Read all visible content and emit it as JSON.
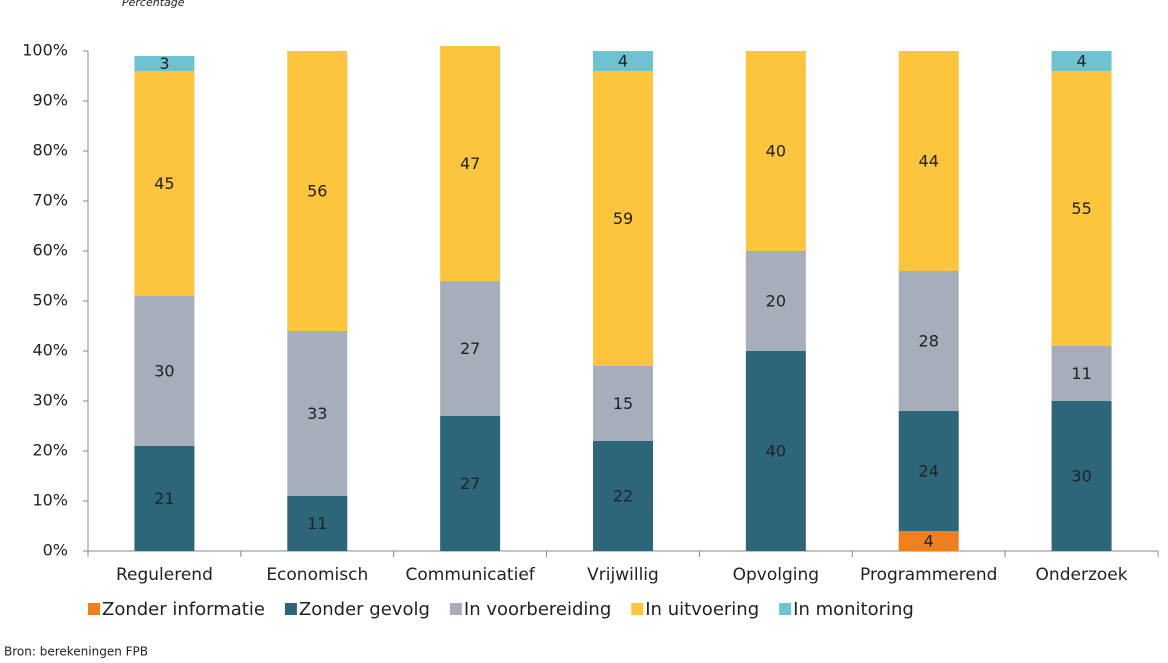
{
  "chart_data": {
    "type": "stacked-bar",
    "subtitle": "Percentage",
    "source": "Bron: berekeningen FPB",
    "categories": [
      "Regulerend",
      "Economisch",
      "Communicatief",
      "Vrijwillig",
      "Opvolging",
      "Programmerend",
      "Onderzoek"
    ],
    "series": [
      {
        "name": "Zonder informatie",
        "color": "#f0801e",
        "values": [
          null,
          null,
          null,
          null,
          null,
          4,
          null
        ]
      },
      {
        "name": "Zonder gevolg",
        "color": "#2e6679",
        "values": [
          21,
          11,
          27,
          22,
          40,
          24,
          30
        ]
      },
      {
        "name": "In voorbereiding",
        "color": "#a6aebb",
        "values": [
          30,
          33,
          27,
          15,
          20,
          28,
          11
        ]
      },
      {
        "name": "In uitvoering",
        "color": "#fdc53e",
        "values": [
          45,
          56,
          47,
          59,
          40,
          44,
          55
        ]
      },
      {
        "name": "In monitoring",
        "color": "#6ec3d2",
        "values": [
          3,
          null,
          null,
          4,
          null,
          null,
          4
        ]
      }
    ],
    "ylim": [
      0,
      100
    ],
    "yticks": [
      {
        "value": 0,
        "label": "0%"
      },
      {
        "value": 10,
        "label": "10%"
      },
      {
        "value": 20,
        "label": "20%"
      },
      {
        "value": 30,
        "label": "30%"
      },
      {
        "value": 40,
        "label": "40%"
      },
      {
        "value": 50,
        "label": "50%"
      },
      {
        "value": 60,
        "label": "60%"
      },
      {
        "value": 70,
        "label": "70%"
      },
      {
        "value": 80,
        "label": "80%"
      },
      {
        "value": 90,
        "label": "90%"
      },
      {
        "value": 100,
        "label": "100%"
      }
    ]
  }
}
